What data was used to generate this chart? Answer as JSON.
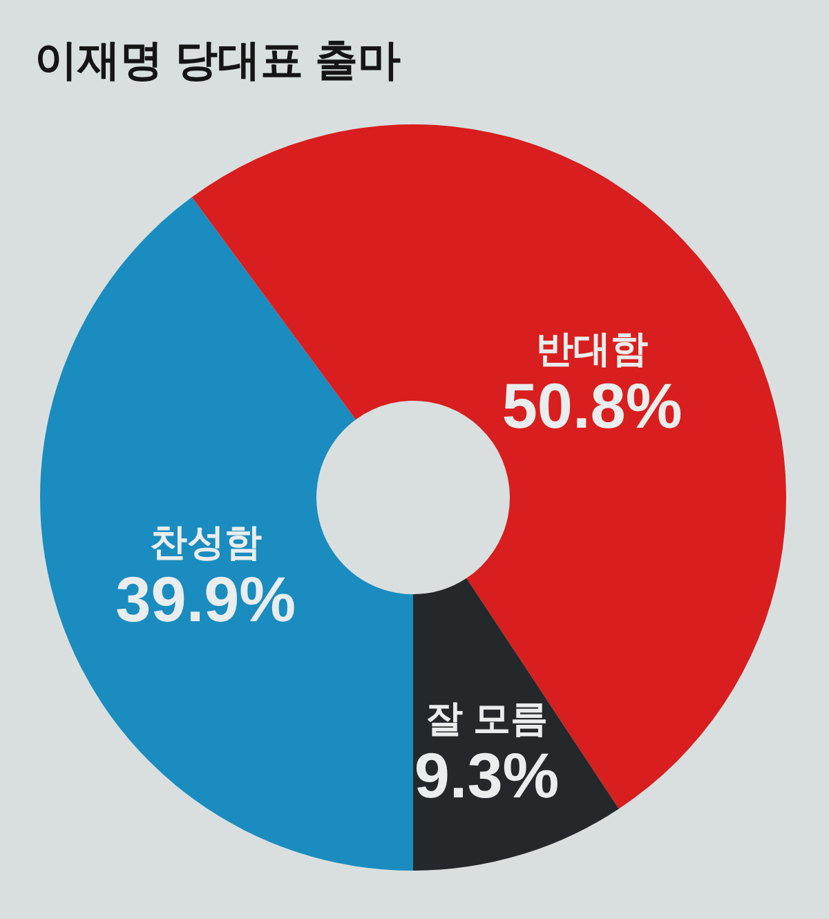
{
  "chart_data": {
    "type": "donut",
    "title": "이재명 당대표 출마",
    "categories": [
      "찬성함",
      "반대함",
      "잘 모름"
    ],
    "values": [
      39.9,
      50.8,
      9.3
    ],
    "colors": [
      "#1a8cbf",
      "#d81e1e",
      "#25282a"
    ],
    "value_labels": [
      "39.9%",
      "50.8%",
      "9.3%"
    ]
  }
}
